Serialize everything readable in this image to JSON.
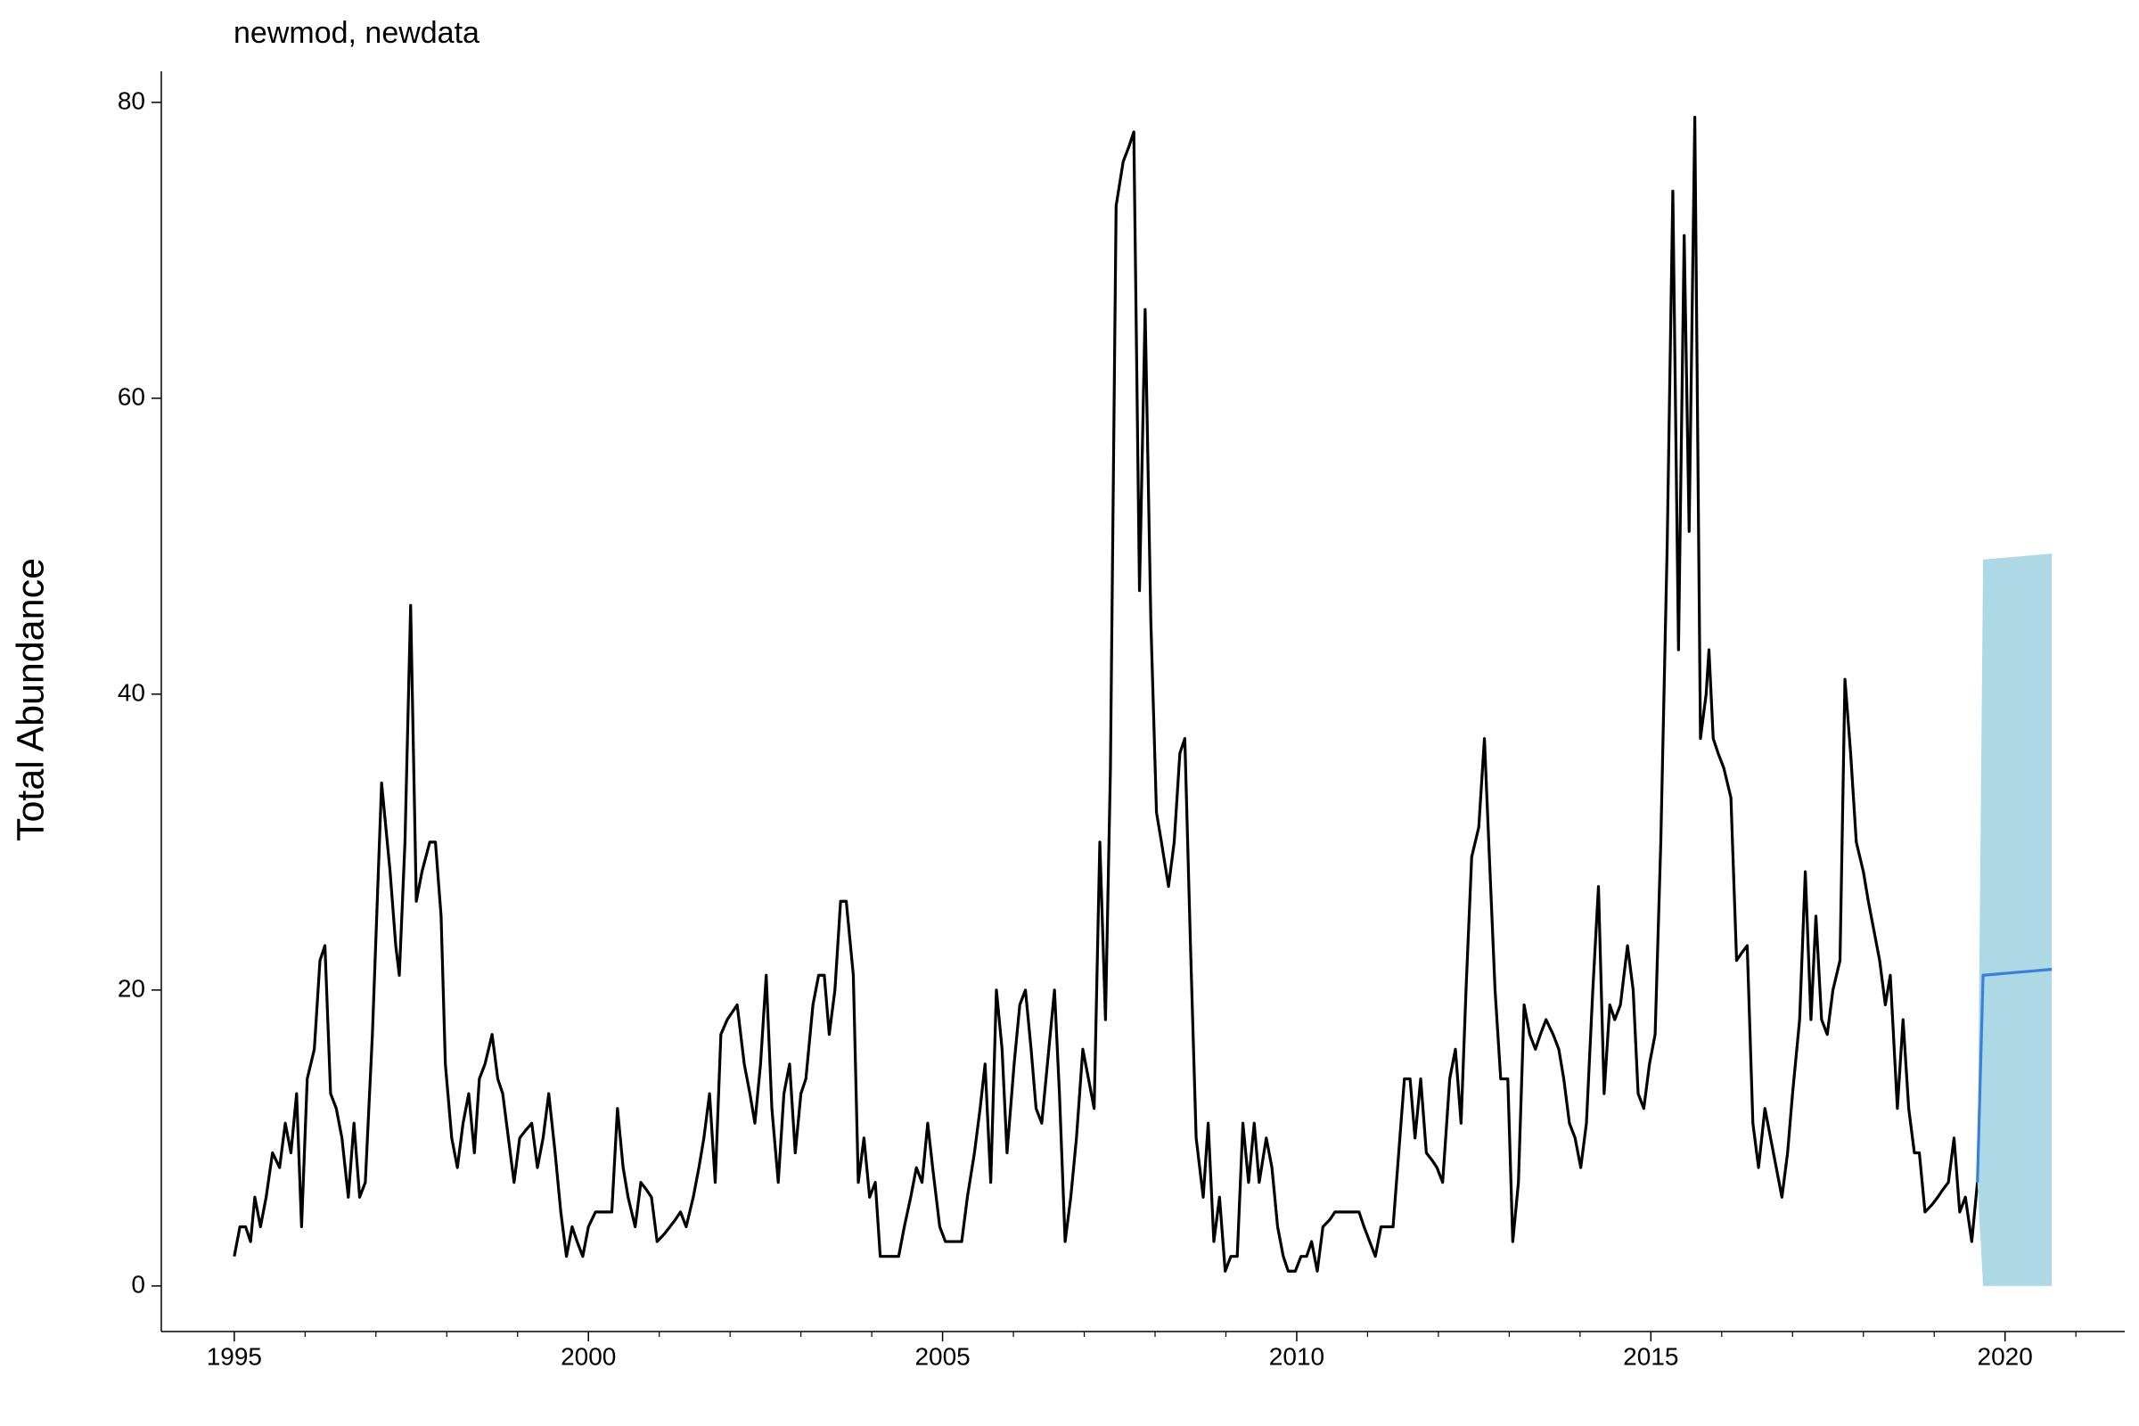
{
  "chart_data": {
    "type": "line",
    "title": "newmod, newdata",
    "y_label": "Total Abundance",
    "xlim": [
      1993.97,
      2021.69
    ],
    "ylim": [
      -3.08,
      82.1
    ],
    "xticks": [
      1995,
      2000,
      2005,
      2010,
      2015,
      2020
    ],
    "xminorticks": [
      1996,
      1997,
      1998,
      1999,
      2001,
      2002,
      2003,
      2004,
      2006,
      2007,
      2008,
      2009,
      2011,
      2012,
      2013,
      2014,
      2016,
      2017,
      2018,
      2019,
      2021
    ],
    "yticks": [
      0,
      20,
      40,
      60,
      80
    ],
    "grid": false,
    "series": [
      {
        "color": "#000000",
        "x": [
          1995.0,
          1995.08,
          1995.16,
          1995.23,
          1995.29,
          1995.37,
          1995.45,
          1995.54,
          1995.64,
          1995.72,
          1995.8,
          1995.88,
          1995.95,
          1996.03,
          1996.13,
          1996.21,
          1996.28,
          1996.36,
          1996.44,
          1996.52,
          1996.61,
          1996.69,
          1996.77,
          1996.85,
          1996.95,
          1997.08,
          1997.2,
          1997.28,
          1997.33,
          1997.41,
          1997.49,
          1997.57,
          1997.65,
          1997.76,
          1997.84,
          1997.92,
          1997.98,
          1998.07,
          1998.15,
          1998.23,
          1998.31,
          1998.39,
          1998.46,
          1998.54,
          1998.64,
          1998.72,
          1998.79,
          1998.87,
          1998.95,
          1999.03,
          1999.11,
          1999.2,
          1999.28,
          1999.36,
          1999.44,
          1999.53,
          1999.61,
          1999.69,
          1999.77,
          1999.84,
          1999.92,
          2000.0,
          2000.1,
          2000.18,
          2000.25,
          2000.33,
          2000.41,
          2000.49,
          2000.56,
          2000.66,
          2000.74,
          2000.82,
          2000.89,
          2000.97,
          2001.07,
          2001.15,
          2001.23,
          2001.3,
          2001.38,
          2001.48,
          2001.56,
          2001.63,
          2001.71,
          2001.79,
          2001.87,
          2001.96,
          2002.1,
          2002.2,
          2002.28,
          2002.35,
          2002.43,
          2002.51,
          2002.59,
          2002.68,
          2002.76,
          2002.84,
          2002.92,
          2003.0,
          2003.07,
          2003.17,
          2003.25,
          2003.33,
          2003.4,
          2003.48,
          2003.56,
          2003.64,
          2003.74,
          2003.81,
          2003.89,
          2003.97,
          2004.05,
          2004.12,
          2004.2,
          2004.3,
          2004.38,
          2004.46,
          2004.55,
          2004.63,
          2004.71,
          2004.79,
          2004.86,
          2004.96,
          2005.04,
          2005.12,
          2005.19,
          2005.27,
          2005.35,
          2005.45,
          2005.53,
          2005.6,
          2005.68,
          2005.76,
          2005.84,
          2005.91,
          2006.01,
          2006.09,
          2006.17,
          2006.25,
          2006.32,
          2006.4,
          2006.5,
          2006.58,
          2006.65,
          2006.73,
          2006.81,
          2006.89,
          2006.98,
          2007.06,
          2007.14,
          2007.22,
          2007.3,
          2007.37,
          2007.45,
          2007.55,
          2007.63,
          2007.7,
          2007.78,
          2007.86,
          2007.94,
          2008.02,
          2008.09,
          2008.19,
          2008.27,
          2008.35,
          2008.42,
          2008.5,
          2008.58,
          2008.68,
          2008.75,
          2008.83,
          2008.91,
          2008.99,
          2009.07,
          2009.16,
          2009.24,
          2009.32,
          2009.4,
          2009.47,
          2009.57,
          2009.65,
          2009.73,
          2009.81,
          2009.88,
          2009.98,
          2010.06,
          2010.14,
          2010.21,
          2010.29,
          2010.37,
          2010.47,
          2010.54,
          2010.62,
          2010.72,
          2010.8,
          2010.88,
          2010.95,
          2011.03,
          2011.11,
          2011.19,
          2011.26,
          2011.36,
          2011.44,
          2011.52,
          2011.6,
          2011.67,
          2011.75,
          2011.83,
          2011.91,
          2011.98,
          2012.06,
          2012.16,
          2012.24,
          2012.32,
          2012.39,
          2012.47,
          2012.57,
          2012.65,
          2012.72,
          2012.8,
          2012.88,
          2012.98,
          2013.05,
          2013.13,
          2013.21,
          2013.29,
          2013.37,
          2013.44,
          2013.52,
          2013.62,
          2013.7,
          2013.77,
          2013.85,
          2013.93,
          2014.01,
          2014.09,
          2014.18,
          2014.26,
          2014.34,
          2014.42,
          2014.49,
          2014.57,
          2014.67,
          2014.75,
          2014.82,
          2014.9,
          2014.98,
          2015.06,
          2015.14,
          2015.23,
          2015.31,
          2015.39,
          2015.47,
          2015.54,
          2015.62,
          2015.7,
          2015.78,
          2015.82,
          2015.88,
          2015.95,
          2016.03,
          2016.13,
          2016.21,
          2016.28,
          2016.36,
          2016.44,
          2016.52,
          2016.61,
          2016.69,
          2016.77,
          2016.85,
          2016.93,
          2017.0,
          2017.1,
          2017.18,
          2017.26,
          2017.33,
          2017.41,
          2017.49,
          2017.57,
          2017.67,
          2017.74,
          2017.82,
          2017.9,
          2018.0,
          2018.07,
          2018.15,
          2018.23,
          2018.31,
          2018.38,
          2018.48,
          2018.56,
          2018.64,
          2018.72,
          2018.79,
          2018.87,
          2018.97,
          2019.05,
          2019.12,
          2019.2,
          2019.28,
          2019.36,
          2019.44,
          2019.53,
          2019.61
        ],
        "values": [
          2,
          4,
          4,
          3,
          6,
          4,
          6,
          9,
          8,
          11,
          9,
          13,
          4,
          14,
          16,
          22,
          23,
          13,
          12,
          10,
          6,
          11,
          6,
          7,
          17,
          34,
          28,
          23,
          21,
          30,
          46,
          26,
          28,
          30,
          30,
          25,
          15,
          10,
          8,
          11,
          13,
          9,
          14,
          15,
          17,
          14,
          13,
          10,
          7,
          10,
          10.5,
          11,
          8,
          10,
          13,
          9,
          5,
          2,
          4,
          3,
          2,
          4,
          5,
          5,
          5,
          5,
          12,
          8,
          6,
          4,
          7,
          6.5,
          6,
          3,
          3.5,
          4,
          4.5,
          5,
          4,
          6,
          8,
          10,
          13,
          7,
          17,
          18,
          19,
          15,
          13,
          11,
          15,
          21,
          12,
          7,
          13,
          15,
          9,
          13,
          14,
          19,
          21,
          21,
          17,
          20,
          26,
          26,
          21,
          7,
          10,
          6,
          7,
          2,
          2,
          2,
          2,
          4,
          6,
          8,
          7,
          11,
          8,
          4,
          3,
          3,
          3,
          3,
          6,
          9,
          12,
          15,
          7,
          20,
          16,
          9,
          15,
          19,
          20,
          16,
          12,
          11,
          16,
          20,
          13,
          3,
          6,
          10,
          16,
          14,
          12,
          30,
          18,
          35,
          73,
          76,
          77,
          78,
          47,
          66,
          45,
          32,
          30,
          27,
          30,
          36,
          37,
          23,
          10,
          6,
          11,
          3,
          6,
          1,
          2,
          2,
          11,
          7,
          11,
          7,
          10,
          8,
          4,
          2,
          1,
          1,
          2,
          2,
          3,
          1,
          4,
          4.5,
          5,
          5,
          5,
          5,
          5,
          4,
          3,
          2,
          4,
          4,
          4,
          9,
          14,
          14,
          10,
          14,
          9,
          8.5,
          8,
          7,
          14,
          16,
          11,
          20,
          29,
          31,
          37,
          29,
          20,
          14,
          14,
          3,
          7,
          19,
          17,
          16,
          17,
          18,
          17,
          16,
          14,
          11,
          10,
          8,
          11,
          20,
          27,
          13,
          19,
          18,
          19,
          23,
          20,
          13,
          12,
          15,
          17,
          30,
          50,
          74,
          43,
          71,
          51,
          79,
          37,
          40,
          43,
          37,
          36,
          35,
          33,
          22,
          22.5,
          23,
          11,
          8,
          12,
          10,
          8,
          6,
          9,
          13,
          18,
          28,
          18,
          25,
          18,
          17,
          20,
          22,
          41,
          36,
          30,
          28,
          26,
          24,
          22,
          19,
          21,
          12,
          18,
          12,
          9,
          9,
          5,
          5.5,
          6,
          6.5,
          7,
          10,
          5,
          6,
          3,
          7
        ]
      },
      {
        "color": "#3a7fdc",
        "band_color": "#add8e6",
        "x": [
          2019.61,
          2019.69,
          2020.66
        ],
        "values": [
          7,
          21,
          21.4
        ],
        "lower": [
          7,
          0,
          0
        ],
        "upper": [
          7,
          49.1,
          49.5
        ]
      }
    ]
  }
}
